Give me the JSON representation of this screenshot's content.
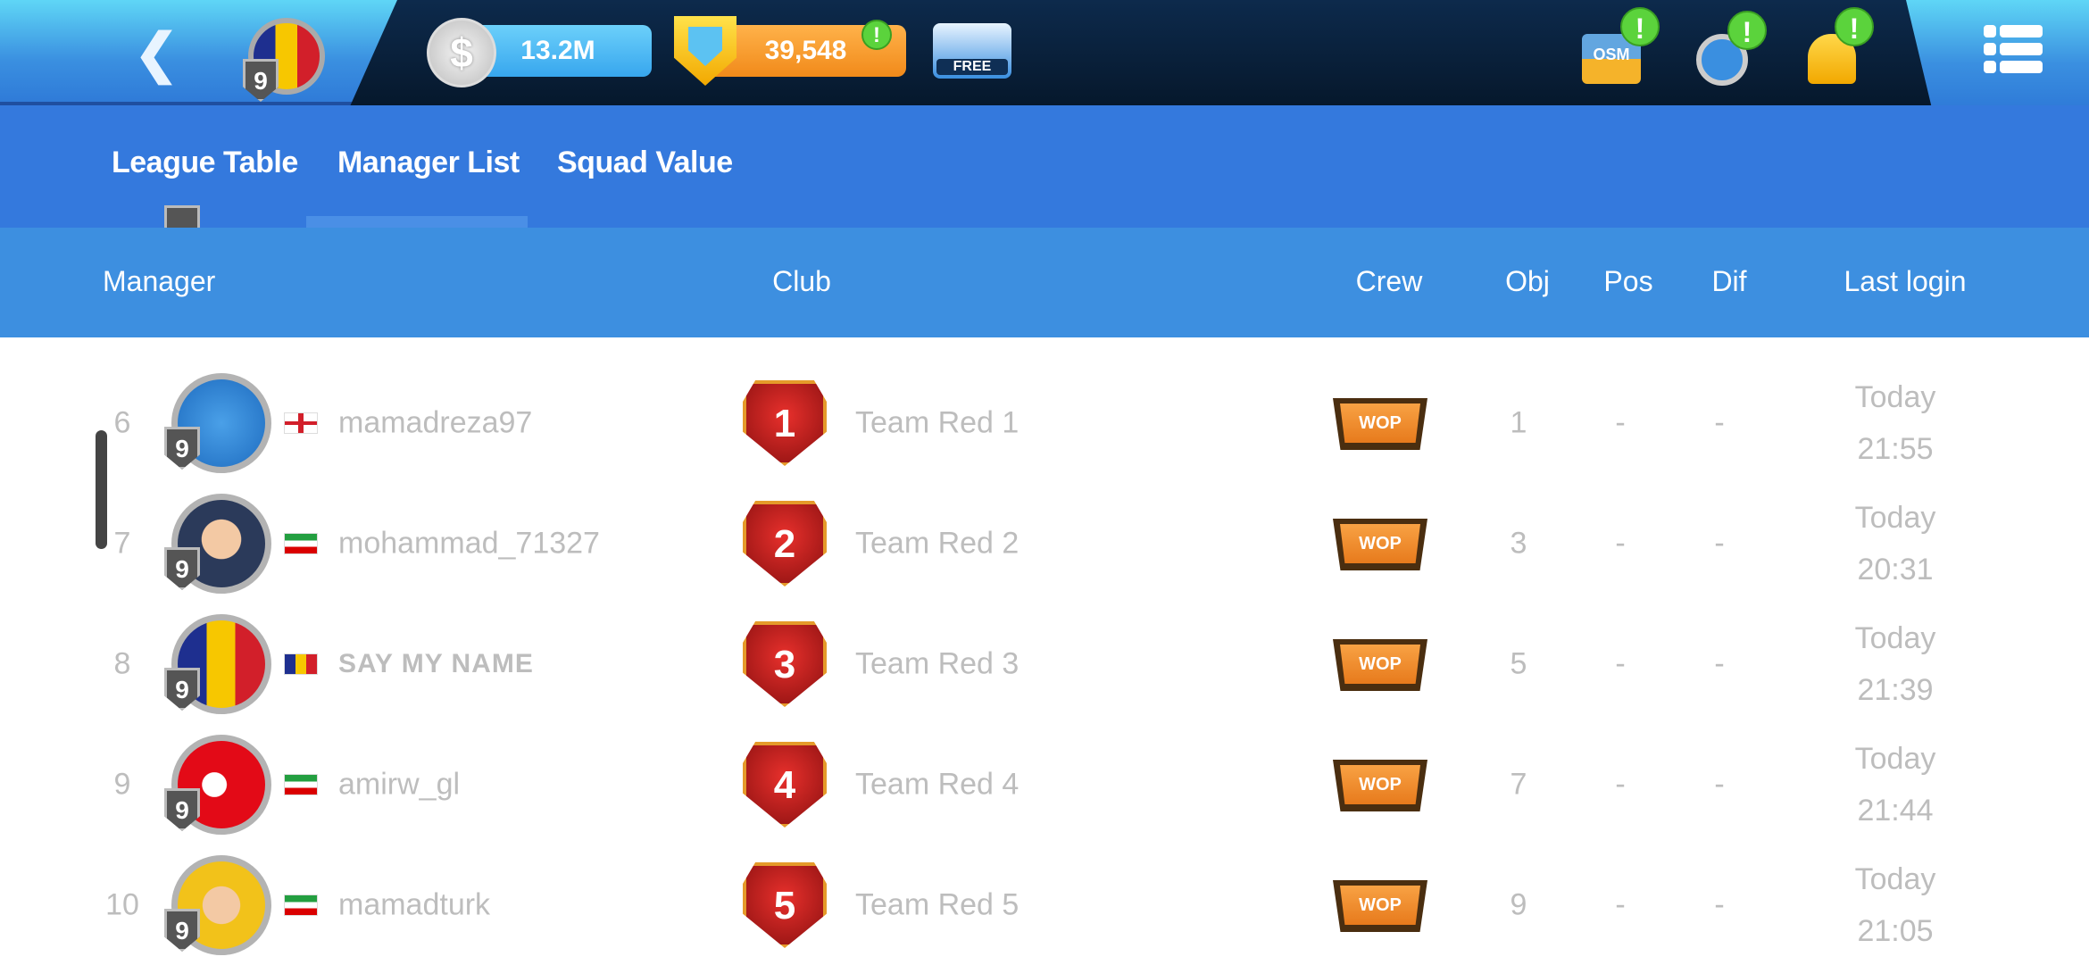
{
  "topbar": {
    "player_level": "9",
    "cash": "13.2M",
    "boss_coins": "39,548",
    "free_label": "FREE",
    "alert_mark": "!",
    "bag_label": "OSM",
    "colors": {
      "bar": "#0c2240",
      "accent": "#3479dd",
      "alert": "#5bd33c"
    }
  },
  "tabs": [
    {
      "label": "League Table",
      "active": false
    },
    {
      "label": "Manager List",
      "active": true
    },
    {
      "label": "Squad Value",
      "active": false
    }
  ],
  "columns": {
    "manager": "Manager",
    "club": "Club",
    "crew": "Crew",
    "obj": "Obj",
    "pos": "Pos",
    "dif": "Dif",
    "last_login": "Last login"
  },
  "rows": [
    {
      "rank": "6",
      "level": "9",
      "avatar": "transfer-icon",
      "flag": "england",
      "name": "mamadreza97",
      "shirt": "1",
      "club": "Team Red 1",
      "crew": "WOP",
      "obj": "1",
      "pos": "-",
      "dif": "-",
      "login_day": "Today",
      "login_time": "21:55"
    },
    {
      "rank": "7",
      "level": "9",
      "avatar": "man-face",
      "flag": "iran",
      "name": "mohammad_71327",
      "shirt": "2",
      "club": "Team Red 2",
      "crew": "WOP",
      "obj": "3",
      "pos": "-",
      "dif": "-",
      "login_day": "Today",
      "login_time": "20:31"
    },
    {
      "rank": "8",
      "level": "9",
      "avatar": "romania-flag",
      "flag": "romania",
      "name": "SAY MY NAME",
      "shirt": "3",
      "club": "Team Red 3",
      "crew": "WOP",
      "obj": "5",
      "pos": "-",
      "dif": "-",
      "login_day": "Today",
      "login_time": "21:39"
    },
    {
      "rank": "9",
      "level": "9",
      "avatar": "turkey-flag",
      "flag": "iran",
      "name": "amirw_gl",
      "shirt": "4",
      "club": "Team Red 4",
      "crew": "WOP",
      "obj": "7",
      "pos": "-",
      "dif": "-",
      "login_day": "Today",
      "login_time": "21:44"
    },
    {
      "rank": "10",
      "level": "9",
      "avatar": "man-face-yellow",
      "flag": "iran",
      "name": "mamadturk",
      "shirt": "5",
      "club": "Team Red 5",
      "crew": "WOP",
      "obj": "9",
      "pos": "-",
      "dif": "-",
      "login_day": "Today",
      "login_time": "21:05"
    }
  ]
}
